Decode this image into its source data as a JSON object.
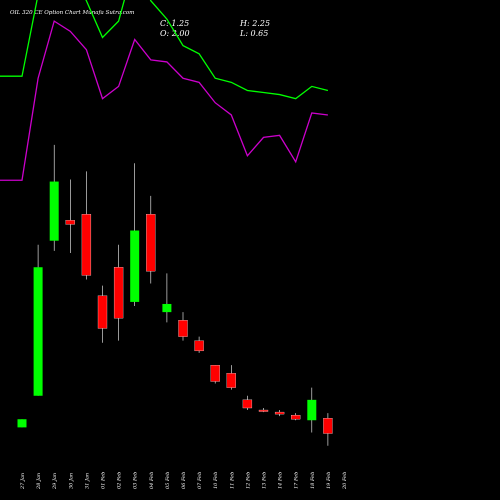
{
  "header": {
    "title": "OIL 320 CE Option Chart Munafa Sutra.com",
    "close": "C: 1.25",
    "high": "H: 2.25",
    "open": "O: 2.00",
    "low": "L: 0.65"
  },
  "colors": {
    "background": "#000000",
    "bullish": "#00ff00",
    "bearish": "#ff0000",
    "wick": "#ffffff",
    "ma_short": "#00ff00",
    "ma_long": "#cc00cc"
  },
  "chart_data": {
    "type": "candlestick",
    "title": "OIL 320 CE Option Chart Munafa Sutra.com",
    "categories": [
      "27 Jan",
      "28 Jan",
      "29 Jan",
      "30 Jan",
      "31 Jan",
      "01 Feb",
      "02 Feb",
      "03 Feb",
      "04 Feb",
      "05 Feb",
      "06 Feb",
      "07 Feb",
      "10 Feb",
      "11 Feb",
      "12 Feb",
      "13 Feb",
      "14 Feb",
      "17 Feb",
      "18 Feb",
      "19 Feb",
      "20 Feb"
    ],
    "ylim": [
      0,
      16
    ],
    "candles": [
      {
        "date": "27 Jan",
        "open": 1.55,
        "high": 1.95,
        "low": 1.55,
        "close": 1.95
      },
      {
        "date": "28 Jan",
        "open": 3.1,
        "high": 10.5,
        "low": 3.1,
        "close": 9.4
      },
      {
        "date": "29 Jan",
        "open": 10.7,
        "high": 15.4,
        "low": 10.2,
        "close": 13.6
      },
      {
        "date": "30 Jan",
        "open": 11.7,
        "high": 13.7,
        "low": 10.1,
        "close": 11.5
      },
      {
        "date": "31 Jan",
        "open": 12.0,
        "high": 14.1,
        "low": 8.8,
        "close": 9.0
      },
      {
        "date": "01 Feb",
        "open": 8.0,
        "high": 8.5,
        "low": 5.7,
        "close": 6.4
      },
      {
        "date": "02 Feb",
        "open": 9.4,
        "high": 10.5,
        "low": 5.8,
        "close": 6.9
      },
      {
        "date": "03 Feb",
        "open": 7.7,
        "high": 14.5,
        "low": 7.5,
        "close": 11.2
      },
      {
        "date": "04 Feb",
        "open": 12.0,
        "high": 12.9,
        "low": 8.6,
        "close": 9.2
      },
      {
        "date": "05 Feb",
        "open": 7.2,
        "high": 9.1,
        "low": 6.7,
        "close": 7.6
      },
      {
        "date": "06 Feb",
        "open": 6.8,
        "high": 7.2,
        "low": 5.8,
        "close": 6.0
      },
      {
        "date": "07 Feb",
        "open": 5.8,
        "high": 6.0,
        "low": 5.2,
        "close": 5.3
      },
      {
        "date": "10 Feb",
        "open": 4.6,
        "high": 4.6,
        "low": 3.7,
        "close": 3.8
      },
      {
        "date": "11 Feb",
        "open": 4.2,
        "high": 4.6,
        "low": 3.4,
        "close": 3.5
      },
      {
        "date": "12 Feb",
        "open": 2.9,
        "high": 3.1,
        "low": 2.4,
        "close": 2.5
      },
      {
        "date": "13 Feb",
        "open": 2.4,
        "high": 2.5,
        "low": 2.3,
        "close": 2.35
      },
      {
        "date": "14 Feb",
        "open": 2.3,
        "high": 2.4,
        "low": 2.1,
        "close": 2.2
      },
      {
        "date": "17 Feb",
        "open": 2.15,
        "high": 2.25,
        "low": 1.9,
        "close": 1.95
      },
      {
        "date": "18 Feb",
        "open": 1.9,
        "high": 3.5,
        "low": 1.3,
        "close": 2.9
      },
      {
        "date": "19 Feb",
        "open": 2.0,
        "high": 2.25,
        "low": 0.65,
        "close": 1.25
      }
    ],
    "moving_averages": [
      {
        "color": "#00ff00",
        "values": [
          34.5,
          34.5,
          38.5,
          41.5,
          39.8,
          38.2,
          36.4,
          37.2,
          40.1,
          38.2,
          37.3,
          36.0,
          35.6,
          34.4,
          34.2,
          33.8,
          33.7,
          33.6,
          33.4,
          34.0,
          33.8
        ]
      },
      {
        "color": "#cc00cc",
        "values": [
          29.4,
          29.4,
          34.4,
          37.2,
          36.7,
          35.8,
          33.4,
          34.0,
          36.3,
          35.3,
          35.2,
          34.4,
          34.2,
          33.2,
          32.6,
          30.6,
          31.5,
          31.6,
          30.3,
          32.7,
          32.6
        ]
      }
    ]
  }
}
